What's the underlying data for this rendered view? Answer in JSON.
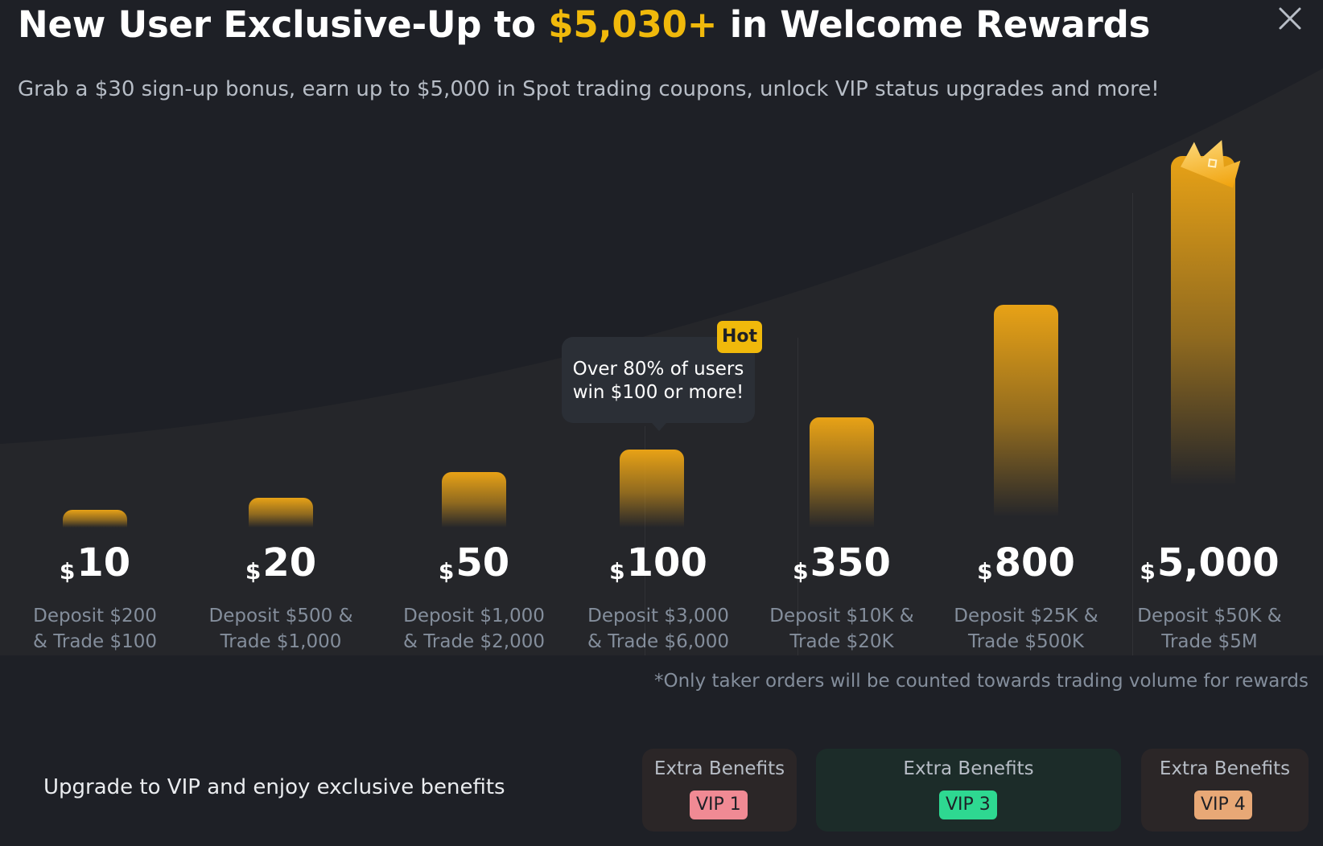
{
  "header": {
    "title_prefix": "New User Exclusive-Up to ",
    "title_highlight": "$5,030+",
    "title_suffix": " in Welcome Rewards",
    "subtitle": "Grab a $30 sign-up bonus, earn up to $5,000 in Spot trading coupons, unlock VIP status upgrades and more!",
    "close_icon": "close-icon"
  },
  "tiers": [
    {
      "currency": "$",
      "amount": "10",
      "requirement": "Deposit $200\n& Trade $100"
    },
    {
      "currency": "$",
      "amount": "20",
      "requirement": "Deposit $500 &\nTrade $1,000"
    },
    {
      "currency": "$",
      "amount": "50",
      "requirement": "Deposit $1,000\n& Trade $2,000"
    },
    {
      "currency": "$",
      "amount": "100",
      "requirement": "Deposit $3,000\n& Trade $6,000"
    },
    {
      "currency": "$",
      "amount": "350",
      "requirement": "Deposit $10K &\nTrade $20K"
    },
    {
      "currency": "$",
      "amount": "800",
      "requirement": "Deposit $25K &\nTrade $500K"
    },
    {
      "currency": "$",
      "amount": "5,000",
      "requirement": "Deposit $50K &\nTrade $5M"
    }
  ],
  "tooltip": {
    "text": "Over 80% of users\nwin $100 or more!",
    "badge": "Hot"
  },
  "footnote": "*Only taker orders will be counted towards trading volume for rewards",
  "vip": {
    "promo": "Upgrade to VIP and enjoy exclusive benefits",
    "cards": [
      {
        "label": "Extra Benefits",
        "badge": "VIP 1",
        "badge_color": "#f08a94",
        "card_color": "#2b2627"
      },
      {
        "label": "Extra Benefits",
        "badge": "VIP 3",
        "badge_color": "#2ed891",
        "card_color": "#1c2c29"
      },
      {
        "label": "Extra Benefits",
        "badge": "VIP 4",
        "badge_color": "#e8a876",
        "card_color": "#2b2627"
      }
    ]
  },
  "colors": {
    "accent": "#f0b90b",
    "bar": "#e8a216",
    "background": "#1e2026"
  },
  "icons": {
    "crown": "crown-icon"
  }
}
